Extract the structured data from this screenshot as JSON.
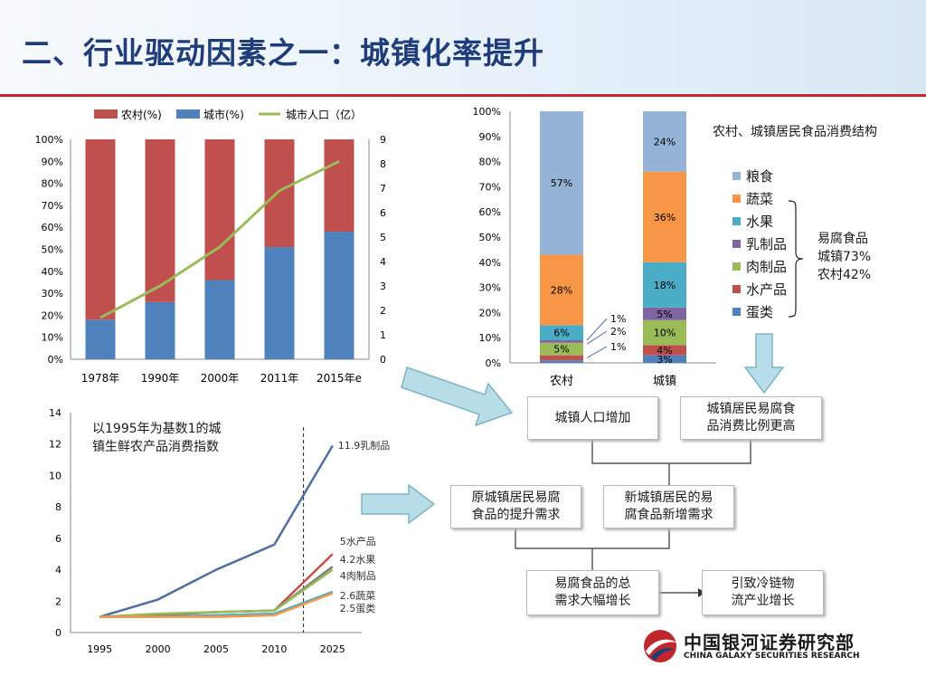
{
  "slide_title": "二、行业驱动因素之一：城镇化率提升",
  "colors": {
    "rural": "#c0504d",
    "urban": "#4f81bd",
    "pop_line": "#9bbb59",
    "title": "#1f3d7a",
    "accent_red": "#c0272d"
  },
  "chart_data": [
    {
      "type": "bar",
      "stacked": true,
      "categories": [
        "1978年",
        "1990年",
        "2000年",
        "2011年",
        "2015年e"
      ],
      "series": [
        {
          "name": "农村(%)",
          "values": [
            82,
            74,
            64,
            49,
            42
          ]
        },
        {
          "name": "城市(%)",
          "values": [
            18,
            26,
            36,
            51,
            58
          ]
        }
      ],
      "line_series": {
        "name": "城市人口（亿）",
        "values": [
          1.7,
          3.0,
          4.6,
          6.9,
          8.1
        ],
        "axis": "right"
      },
      "y_ticks_left": [
        "0%",
        "10%",
        "20%",
        "30%",
        "40%",
        "50%",
        "60%",
        "70%",
        "80%",
        "90%",
        "100%"
      ],
      "y_ticks_right": [
        "0",
        "1",
        "2",
        "3",
        "4",
        "5",
        "6",
        "7",
        "8",
        "9"
      ],
      "ylim_left": [
        0,
        100
      ],
      "ylim_right": [
        0,
        9
      ],
      "legend_position": "top"
    },
    {
      "type": "bar",
      "stacked": true,
      "title": "农村、城镇居民食品消费结构",
      "categories": [
        "农村",
        "城镇"
      ],
      "series": [
        {
          "name": "蛋类",
          "values": [
            1,
            3
          ],
          "labels": [
            "",
            "3%"
          ]
        },
        {
          "name": "水产品",
          "values": [
            2,
            4
          ],
          "labels": [
            "",
            "4%"
          ]
        },
        {
          "name": "肉制品",
          "values": [
            5,
            10
          ],
          "labels": [
            "5%",
            "10%"
          ]
        },
        {
          "name": "乳制品",
          "values": [
            1,
            5
          ],
          "labels": [
            "",
            "5%"
          ]
        },
        {
          "name": "水果",
          "values": [
            6,
            18
          ],
          "labels": [
            "6%",
            "18%"
          ]
        },
        {
          "name": "蔬菜",
          "values": [
            28,
            36
          ],
          "labels": [
            "28%",
            "36%"
          ]
        },
        {
          "name": "粮食",
          "values": [
            57,
            24
          ],
          "labels": [
            "57%",
            "24%"
          ]
        }
      ],
      "series_colors": [
        "#4f81bd",
        "#c0504d",
        "#9bbb59",
        "#8064a2",
        "#4bacc6",
        "#f79646",
        "#95b3d7"
      ],
      "legend_order": [
        "粮食",
        "蔬菜",
        "水果",
        "乳制品",
        "肉制品",
        "水产品",
        "蛋类"
      ],
      "callout_labels": [
        "1%",
        "2%",
        "1%"
      ],
      "y_ticks": [
        "0%",
        "10%",
        "20%",
        "30%",
        "40%",
        "50%",
        "60%",
        "70%",
        "80%",
        "90%",
        "100%"
      ],
      "ylim": [
        0,
        100
      ],
      "brace_note": "易腐食品\n城镇73%\n农村42%",
      "legend_position": "right"
    },
    {
      "type": "line",
      "note": "以1995年为基数1的城\n镇生鲜农产品消费指数",
      "x": [
        "1995",
        "2000",
        "2005",
        "2010",
        "2025"
      ],
      "series": [
        {
          "name": "乳制品",
          "end_label": "11.9乳制品",
          "values": [
            1.0,
            2.1,
            4.0,
            5.6,
            11.9
          ],
          "color": "#4f6fa0"
        },
        {
          "name": "水产品",
          "end_label": "5水产品",
          "values": [
            1.0,
            1.1,
            1.3,
            1.4,
            5.0
          ],
          "color": "#c0504d"
        },
        {
          "name": "水果",
          "end_label": "4.2水果",
          "values": [
            1.0,
            1.1,
            1.3,
            1.4,
            4.2
          ],
          "color": "#7f7f7f"
        },
        {
          "name": "肉制品",
          "end_label": "4肉制品",
          "values": [
            1.0,
            1.2,
            1.3,
            1.4,
            4.0
          ],
          "color": "#9bbb59"
        },
        {
          "name": "蔬菜",
          "end_label": "2.6蔬菜",
          "values": [
            1.0,
            1.0,
            1.1,
            1.2,
            2.6
          ],
          "color": "#4bacc6"
        },
        {
          "name": "蛋类",
          "end_label": "2.5蛋类",
          "values": [
            1.0,
            1.0,
            1.0,
            1.1,
            2.5
          ],
          "color": "#f79646"
        }
      ],
      "y_ticks": [
        "0",
        "2",
        "4",
        "6",
        "8",
        "10",
        "12",
        "14"
      ],
      "ylim": [
        0,
        14
      ]
    }
  ],
  "flow": {
    "box_urban_pop": "城镇人口增加",
    "box_perishable_ratio": "城镇居民易腐食\n品消费比例更高",
    "box_existing_demand": "原城镇居民易腐\n食品的提升需求",
    "box_new_demand": "新城镇居民的易\n腐食品新增需求",
    "box_total_demand": "易腐食品的总\n需求大幅增长",
    "box_cold_chain": "引致冷链物\n流产业增长"
  },
  "logo": {
    "cn": "中国银河证券研究部",
    "en": "CHINA GALAXY SECURITIES RESEARCH"
  }
}
